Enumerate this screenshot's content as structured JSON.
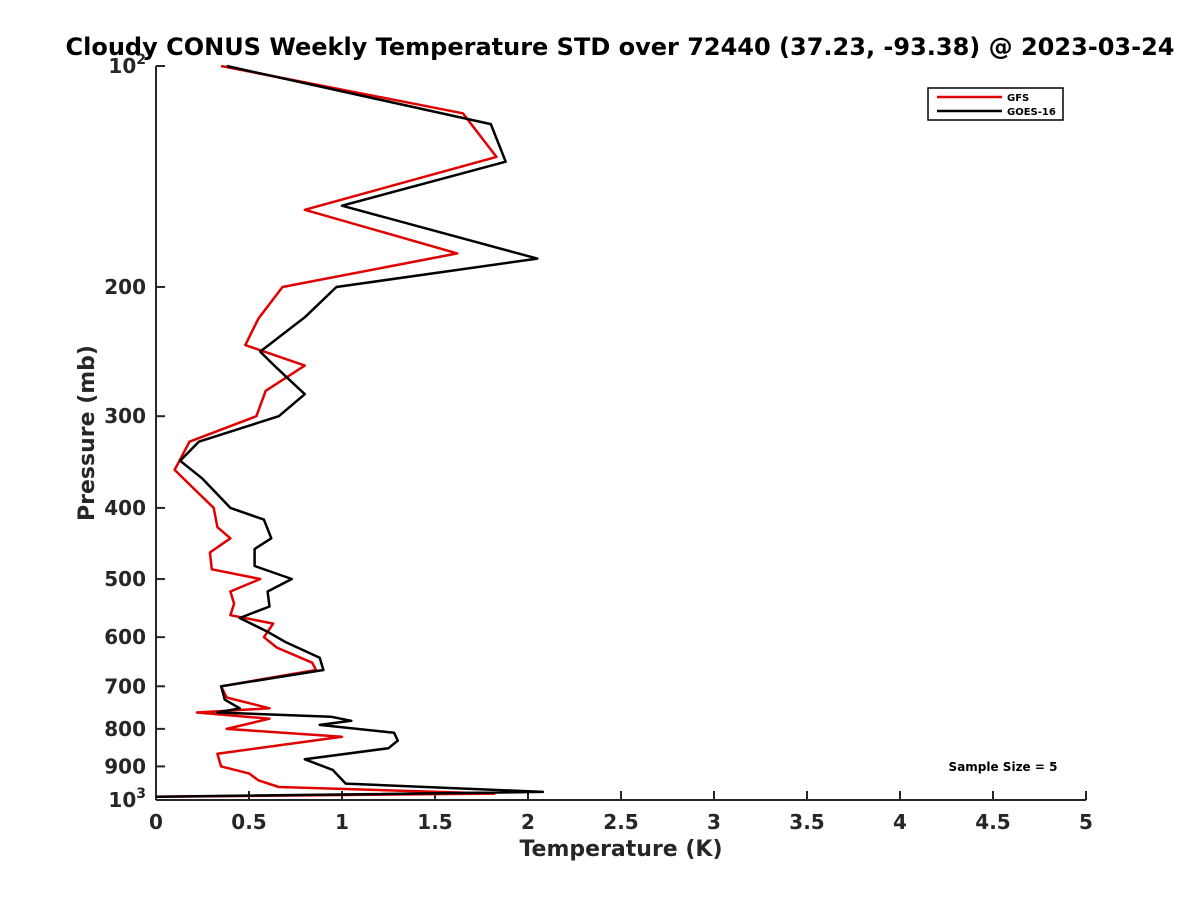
{
  "chart_data": {
    "type": "line",
    "title": "Cloudy CONUS Weekly Temperature STD over 72440 (37.23, -93.38) @ 2023-03-24",
    "xlabel": "Temperature (K)",
    "ylabel": "Pressure (mb)",
    "xlim": [
      0,
      5
    ],
    "ylim": [
      100,
      1000
    ],
    "y_scale": "log",
    "y_reversed": true,
    "x_ticks": [
      "0",
      "0.5",
      "1",
      "1.5",
      "2",
      "2.5",
      "3",
      "3.5",
      "4",
      "4.5",
      "5"
    ],
    "y_ticks": [
      {
        "value": 100,
        "base": "10",
        "exp": "2"
      },
      {
        "value": 200,
        "label": "200"
      },
      {
        "value": 300,
        "label": "300"
      },
      {
        "value": 400,
        "label": "400"
      },
      {
        "value": 500,
        "label": "500"
      },
      {
        "value": 600,
        "label": "600"
      },
      {
        "value": 700,
        "label": "700"
      },
      {
        "value": 800,
        "label": "800"
      },
      {
        "value": 900,
        "label": "900"
      },
      {
        "value": 1000,
        "base": "10",
        "exp": "3"
      }
    ],
    "grid": false,
    "legend_position": "top-right",
    "annotation": "Sample Size = 5",
    "series": [
      {
        "name": "GFS",
        "color": "#e00000",
        "points": [
          [
            0.35,
            100
          ],
          [
            1.65,
            116
          ],
          [
            1.83,
            133
          ],
          [
            0.8,
            157
          ],
          [
            1.62,
            180
          ],
          [
            0.68,
            200
          ],
          [
            0.55,
            221
          ],
          [
            0.48,
            240
          ],
          [
            0.8,
            256
          ],
          [
            0.59,
            277
          ],
          [
            0.54,
            300
          ],
          [
            0.18,
            325
          ],
          [
            0.1,
            355
          ],
          [
            0.22,
            380
          ],
          [
            0.31,
            400
          ],
          [
            0.33,
            425
          ],
          [
            0.4,
            440
          ],
          [
            0.29,
            460
          ],
          [
            0.3,
            485
          ],
          [
            0.56,
            500
          ],
          [
            0.4,
            520
          ],
          [
            0.42,
            540
          ],
          [
            0.4,
            560
          ],
          [
            0.63,
            575
          ],
          [
            0.58,
            600
          ],
          [
            0.65,
            620
          ],
          [
            0.84,
            650
          ],
          [
            0.86,
            665
          ],
          [
            0.35,
            700
          ],
          [
            0.38,
            725
          ],
          [
            0.61,
            750
          ],
          [
            0.22,
            760
          ],
          [
            0.61,
            775
          ],
          [
            0.38,
            800
          ],
          [
            1.0,
            820
          ],
          [
            0.33,
            865
          ],
          [
            0.35,
            900
          ],
          [
            0.5,
            920
          ],
          [
            0.55,
            940
          ],
          [
            0.66,
            960
          ],
          [
            1.82,
            980
          ],
          [
            0.0,
            990
          ]
        ]
      },
      {
        "name": "GOES-16",
        "color": "#000000",
        "points": [
          [
            0.38,
            100
          ],
          [
            1.8,
            120
          ],
          [
            1.88,
            135
          ],
          [
            1.0,
            155
          ],
          [
            2.05,
            183
          ],
          [
            0.97,
            200
          ],
          [
            0.8,
            220
          ],
          [
            0.56,
            245
          ],
          [
            0.65,
            258
          ],
          [
            0.8,
            280
          ],
          [
            0.66,
            300
          ],
          [
            0.23,
            325
          ],
          [
            0.13,
            345
          ],
          [
            0.25,
            365
          ],
          [
            0.4,
            400
          ],
          [
            0.58,
            415
          ],
          [
            0.62,
            440
          ],
          [
            0.53,
            455
          ],
          [
            0.53,
            480
          ],
          [
            0.73,
            500
          ],
          [
            0.6,
            520
          ],
          [
            0.61,
            545
          ],
          [
            0.45,
            565
          ],
          [
            0.6,
            590
          ],
          [
            0.7,
            610
          ],
          [
            0.88,
            640
          ],
          [
            0.9,
            665
          ],
          [
            0.35,
            700
          ],
          [
            0.37,
            730
          ],
          [
            0.45,
            750
          ],
          [
            0.33,
            760
          ],
          [
            0.94,
            770
          ],
          [
            1.05,
            780
          ],
          [
            0.88,
            790
          ],
          [
            1.28,
            810
          ],
          [
            1.3,
            830
          ],
          [
            1.25,
            850
          ],
          [
            0.8,
            880
          ],
          [
            0.95,
            910
          ],
          [
            1.02,
            950
          ],
          [
            2.08,
            975
          ],
          [
            0.0,
            990
          ]
        ]
      }
    ]
  }
}
